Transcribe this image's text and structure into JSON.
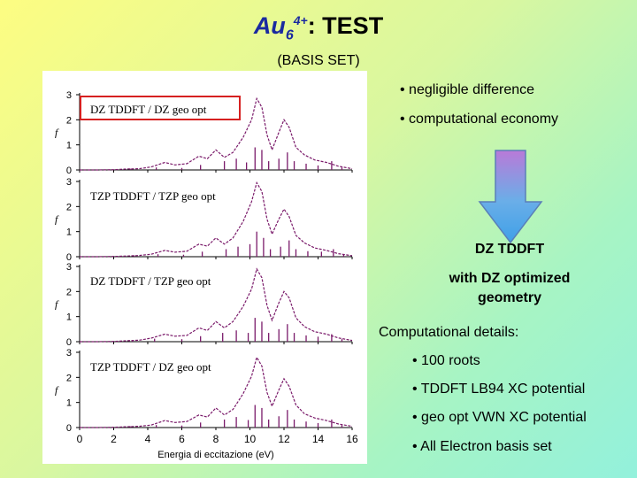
{
  "slide": {
    "title_formula": "Au",
    "title_sub": "6",
    "title_sup": "4+",
    "title_rest": ": TEST",
    "subtitle": "(BASIS SET)"
  },
  "bullets_top": [
    "• negligible difference",
    "• computational economy"
  ],
  "conclusion": {
    "line1": "DZ TDDFT",
    "line2": "with DZ optimized",
    "line3": "geometry"
  },
  "details": {
    "heading": "Computational details:",
    "items": [
      "• 100 roots",
      "• TDDFT LB94 XC potential",
      "•  geo opt VWN XC potential",
      "• All Electron basis set"
    ]
  },
  "colors": {
    "accent": "#1a2aa0",
    "highlight_box": "#d62020",
    "spectrum_line": "#7a1a6a",
    "arrow_fill": "#6aaee8"
  },
  "icons": {
    "arrow": "down-arrow-icon"
  },
  "chart_data": {
    "type": "line",
    "xlabel": "Energia di eccitazione (eV)",
    "ylabel": "f",
    "xlim": [
      0,
      16
    ],
    "ylim": [
      0,
      3
    ],
    "xticks": [
      "0",
      "2",
      "4",
      "6",
      "8",
      "10",
      "12",
      "14",
      "16"
    ],
    "yticks": [
      "0",
      "1",
      "2",
      "3"
    ],
    "panels": [
      {
        "label": "DZ TDDFT / DZ geo opt",
        "curve": [
          [
            0,
            0
          ],
          [
            1,
            0
          ],
          [
            2,
            0.01
          ],
          [
            2.8,
            0.04
          ],
          [
            3.5,
            0.05
          ],
          [
            4.2,
            0.12
          ],
          [
            5,
            0.3
          ],
          [
            5.6,
            0.2
          ],
          [
            6.3,
            0.25
          ],
          [
            7,
            0.55
          ],
          [
            7.5,
            0.45
          ],
          [
            8,
            0.8
          ],
          [
            8.5,
            0.5
          ],
          [
            9,
            0.7
          ],
          [
            9.6,
            1.3
          ],
          [
            10.1,
            2.0
          ],
          [
            10.4,
            2.85
          ],
          [
            10.7,
            2.5
          ],
          [
            11,
            1.4
          ],
          [
            11.3,
            0.8
          ],
          [
            11.7,
            1.5
          ],
          [
            12,
            2.0
          ],
          [
            12.3,
            1.7
          ],
          [
            12.7,
            0.9
          ],
          [
            13.2,
            0.6
          ],
          [
            13.8,
            0.4
          ],
          [
            14.5,
            0.3
          ],
          [
            15.2,
            0.15
          ],
          [
            16,
            0.05
          ]
        ],
        "sticks": [
          [
            3,
            0.05
          ],
          [
            4.5,
            0.1
          ],
          [
            6,
            0.08
          ],
          [
            7.1,
            0.2
          ],
          [
            8.5,
            0.35
          ],
          [
            9.2,
            0.45
          ],
          [
            9.8,
            0.3
          ],
          [
            10.3,
            0.9
          ],
          [
            10.7,
            0.8
          ],
          [
            11.1,
            0.35
          ],
          [
            11.7,
            0.45
          ],
          [
            12.2,
            0.7
          ],
          [
            12.6,
            0.35
          ],
          [
            13.3,
            0.25
          ],
          [
            14,
            0.18
          ],
          [
            14.8,
            0.35
          ],
          [
            15.4,
            0.1
          ]
        ]
      },
      {
        "label": "TZP TDDFT / TZP geo opt",
        "curve": [
          [
            0,
            0
          ],
          [
            1,
            0
          ],
          [
            2,
            0.01
          ],
          [
            2.8,
            0.03
          ],
          [
            3.5,
            0.05
          ],
          [
            4.2,
            0.1
          ],
          [
            5,
            0.25
          ],
          [
            5.6,
            0.18
          ],
          [
            6.3,
            0.22
          ],
          [
            7,
            0.5
          ],
          [
            7.5,
            0.42
          ],
          [
            8,
            0.75
          ],
          [
            8.5,
            0.5
          ],
          [
            9,
            0.75
          ],
          [
            9.6,
            1.4
          ],
          [
            10.1,
            2.2
          ],
          [
            10.4,
            2.95
          ],
          [
            10.7,
            2.6
          ],
          [
            11,
            1.5
          ],
          [
            11.3,
            0.9
          ],
          [
            11.7,
            1.5
          ],
          [
            12,
            1.9
          ],
          [
            12.3,
            1.6
          ],
          [
            12.7,
            0.85
          ],
          [
            13.2,
            0.55
          ],
          [
            13.8,
            0.35
          ],
          [
            14.5,
            0.25
          ],
          [
            15.2,
            0.12
          ],
          [
            16,
            0.04
          ]
        ],
        "sticks": [
          [
            3.2,
            0.05
          ],
          [
            4.6,
            0.1
          ],
          [
            6.1,
            0.08
          ],
          [
            7.2,
            0.2
          ],
          [
            8.6,
            0.3
          ],
          [
            9.3,
            0.4
          ],
          [
            10,
            0.5
          ],
          [
            10.4,
            1.0
          ],
          [
            10.8,
            0.75
          ],
          [
            11.2,
            0.3
          ],
          [
            11.8,
            0.4
          ],
          [
            12.3,
            0.65
          ],
          [
            12.7,
            0.3
          ],
          [
            13.4,
            0.22
          ],
          [
            14.2,
            0.2
          ],
          [
            14.9,
            0.3
          ],
          [
            15.5,
            0.1
          ]
        ]
      },
      {
        "label": "DZ TDDFT / TZP geo opt",
        "curve": [
          [
            0,
            0
          ],
          [
            1,
            0
          ],
          [
            2,
            0.01
          ],
          [
            2.8,
            0.04
          ],
          [
            3.5,
            0.06
          ],
          [
            4.2,
            0.14
          ],
          [
            5,
            0.3
          ],
          [
            5.6,
            0.22
          ],
          [
            6.3,
            0.25
          ],
          [
            7,
            0.55
          ],
          [
            7.5,
            0.45
          ],
          [
            8,
            0.8
          ],
          [
            8.5,
            0.55
          ],
          [
            9,
            0.8
          ],
          [
            9.6,
            1.4
          ],
          [
            10.1,
            2.1
          ],
          [
            10.4,
            2.9
          ],
          [
            10.7,
            2.55
          ],
          [
            11,
            1.45
          ],
          [
            11.3,
            0.85
          ],
          [
            11.7,
            1.55
          ],
          [
            12,
            2.0
          ],
          [
            12.3,
            1.75
          ],
          [
            12.7,
            0.95
          ],
          [
            13.2,
            0.6
          ],
          [
            13.8,
            0.4
          ],
          [
            14.5,
            0.3
          ],
          [
            15.2,
            0.15
          ],
          [
            16,
            0.05
          ]
        ],
        "sticks": [
          [
            3.1,
            0.05
          ],
          [
            4.4,
            0.12
          ],
          [
            6,
            0.1
          ],
          [
            7.1,
            0.22
          ],
          [
            8.4,
            0.35
          ],
          [
            9.2,
            0.45
          ],
          [
            9.9,
            0.35
          ],
          [
            10.3,
            0.95
          ],
          [
            10.7,
            0.8
          ],
          [
            11.1,
            0.35
          ],
          [
            11.7,
            0.5
          ],
          [
            12.2,
            0.7
          ],
          [
            12.6,
            0.35
          ],
          [
            13.3,
            0.25
          ],
          [
            14,
            0.2
          ],
          [
            14.8,
            0.3
          ],
          [
            15.4,
            0.1
          ]
        ]
      },
      {
        "label": "TZP TDDFT / DZ geo opt",
        "curve": [
          [
            0,
            0
          ],
          [
            1,
            0
          ],
          [
            2,
            0.01
          ],
          [
            2.8,
            0.03
          ],
          [
            3.5,
            0.05
          ],
          [
            4.2,
            0.1
          ],
          [
            5,
            0.28
          ],
          [
            5.6,
            0.2
          ],
          [
            6.3,
            0.24
          ],
          [
            7,
            0.5
          ],
          [
            7.5,
            0.42
          ],
          [
            8,
            0.78
          ],
          [
            8.5,
            0.5
          ],
          [
            9,
            0.72
          ],
          [
            9.6,
            1.35
          ],
          [
            10.1,
            2.05
          ],
          [
            10.4,
            2.8
          ],
          [
            10.7,
            2.45
          ],
          [
            11,
            1.4
          ],
          [
            11.3,
            0.85
          ],
          [
            11.7,
            1.5
          ],
          [
            12,
            1.95
          ],
          [
            12.3,
            1.65
          ],
          [
            12.7,
            0.9
          ],
          [
            13.2,
            0.55
          ],
          [
            13.8,
            0.38
          ],
          [
            14.5,
            0.28
          ],
          [
            15.2,
            0.14
          ],
          [
            16,
            0.05
          ]
        ],
        "sticks": [
          [
            3,
            0.05
          ],
          [
            4.5,
            0.1
          ],
          [
            6,
            0.08
          ],
          [
            7.1,
            0.2
          ],
          [
            8.5,
            0.32
          ],
          [
            9.2,
            0.42
          ],
          [
            9.9,
            0.3
          ],
          [
            10.3,
            0.9
          ],
          [
            10.7,
            0.78
          ],
          [
            11.1,
            0.32
          ],
          [
            11.7,
            0.45
          ],
          [
            12.2,
            0.7
          ],
          [
            12.6,
            0.32
          ],
          [
            13.3,
            0.24
          ],
          [
            14,
            0.18
          ],
          [
            14.8,
            0.32
          ],
          [
            15.4,
            0.1
          ]
        ]
      }
    ]
  }
}
